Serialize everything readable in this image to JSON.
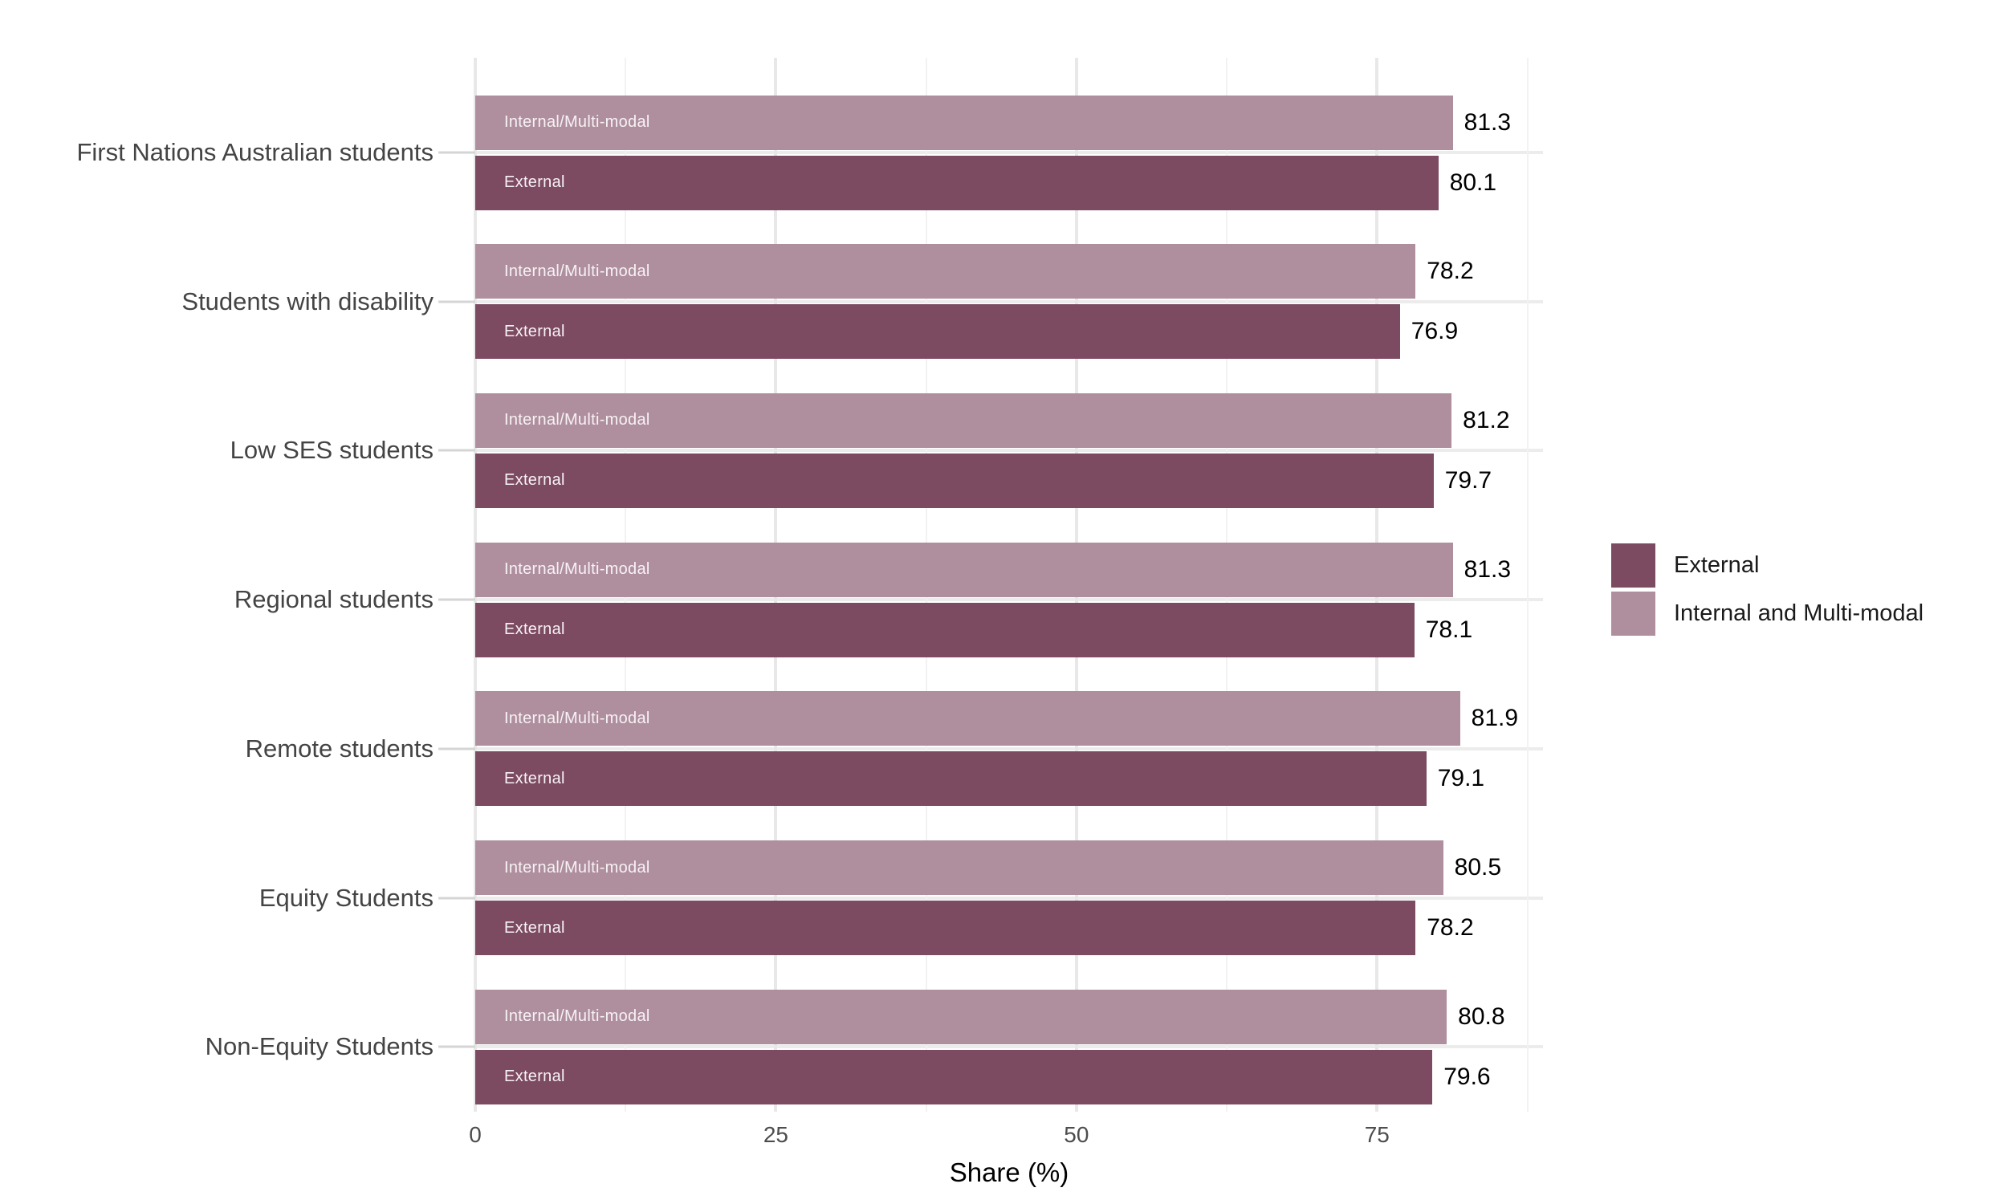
{
  "chart_data": {
    "type": "bar",
    "orientation": "horizontal",
    "xlabel": "Share (%)",
    "x_ticks": [
      0,
      25,
      50,
      75
    ],
    "x_minor_ticks": [
      12.5,
      37.5,
      62.5,
      87.5
    ],
    "xlim": [
      0,
      88.8
    ],
    "grid": true,
    "legend_position": "right",
    "categories": [
      "First Nations Australian students",
      "Students with disability",
      "Low SES students",
      "Regional students",
      "Remote students",
      "Equity Students",
      "Non-Equity Students"
    ],
    "series": [
      {
        "name": "Internal and Multi-modal",
        "bar_label": "Internal/Multi-modal",
        "color": "#af8f9e",
        "values": [
          81.3,
          78.2,
          81.2,
          81.3,
          81.9,
          80.5,
          80.8
        ]
      },
      {
        "name": "External",
        "bar_label": "External",
        "color": "#7c4a61",
        "values": [
          80.1,
          76.9,
          79.7,
          78.1,
          79.1,
          78.2,
          79.6
        ]
      }
    ],
    "legend": [
      {
        "label": "External",
        "color": "#7c4a61"
      },
      {
        "label": "Internal and Multi-modal",
        "color": "#af8f9e"
      }
    ]
  }
}
